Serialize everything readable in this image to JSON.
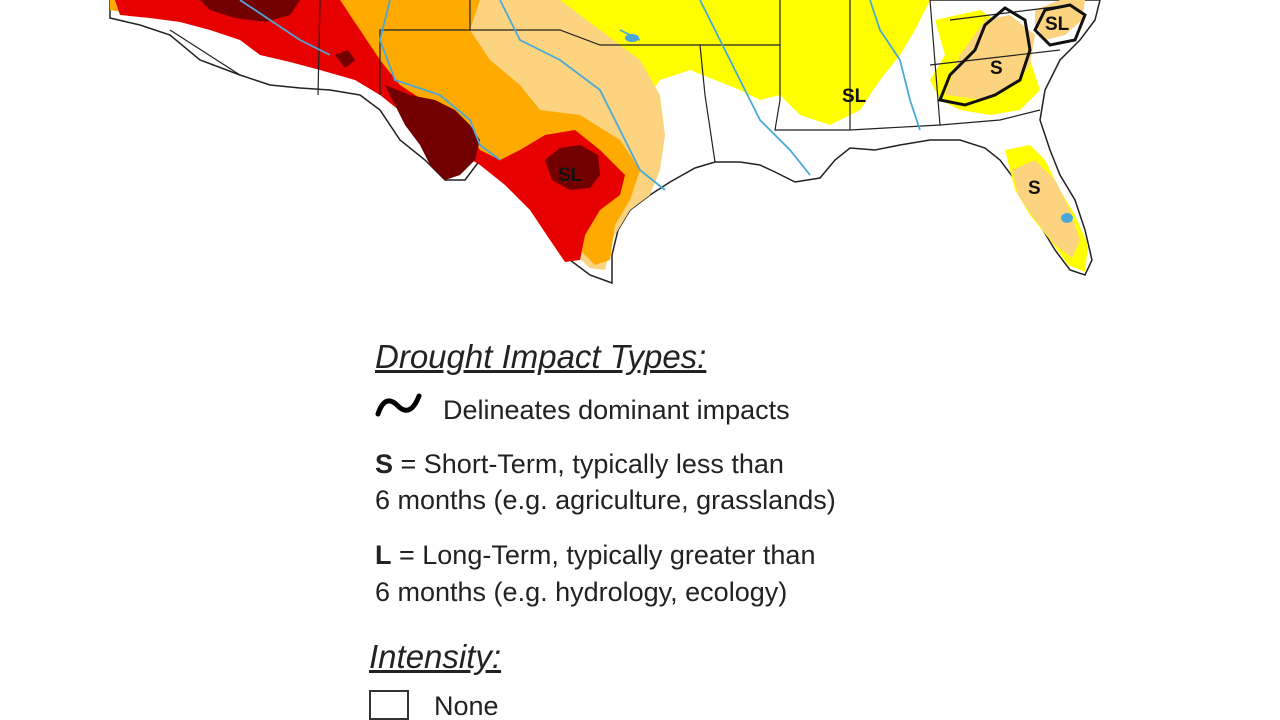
{
  "map": {
    "labels": [
      {
        "text": "SL",
        "name": "label-texas-sl"
      },
      {
        "text": "SL",
        "name": "label-mississippi-sl"
      },
      {
        "text": "S",
        "name": "label-carolina-s"
      },
      {
        "text": "SL",
        "name": "label-virginia-sl"
      },
      {
        "text": "S",
        "name": "label-florida-s"
      }
    ],
    "colors": {
      "none": "#ffffff",
      "d0": "#ffff00",
      "d1": "#fcd37f",
      "d2": "#ffaa00",
      "d3": "#e60000",
      "d4": "#730000",
      "water": "#4aa8d8",
      "border": "#222222"
    }
  },
  "legend": {
    "impact_types": {
      "heading": "Drought Impact Types:",
      "delineates": "Delineates dominant impacts",
      "short_term": {
        "key": "S",
        "line1": " = Short-Term, typically less than",
        "line2": "6 months (e.g. agriculture, grasslands)"
      },
      "long_term": {
        "key": "L",
        "line1": " = Long-Term, typically greater than",
        "line2": "6 months (e.g. hydrology, ecology)"
      }
    },
    "intensity": {
      "heading": "Intensity:",
      "items": [
        {
          "label": "None",
          "color": "#ffffff"
        }
      ]
    }
  }
}
